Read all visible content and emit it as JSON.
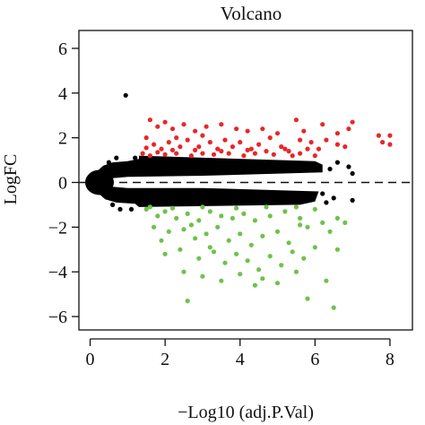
{
  "chart_data": {
    "type": "scatter",
    "title": "Volcano",
    "xlabel": "−Log10 (adj.P.Val)",
    "ylabel": "LogFC",
    "xlim": [
      -0.3,
      8.6
    ],
    "ylim": [
      -6.6,
      6.8
    ],
    "x_ticks": [
      "0",
      "2",
      "4",
      "6",
      "8"
    ],
    "x_tick_values": [
      0,
      2,
      4,
      6,
      8
    ],
    "y_ticks": [
      "6",
      "4",
      "2",
      "0",
      "−2",
      "−4",
      "−6"
    ],
    "y_tick_values": [
      6,
      4,
      2,
      0,
      -2,
      -4,
      -6
    ],
    "reference_line_y": 0,
    "grid": false,
    "legend": "none",
    "series": [
      {
        "color": "#e8272a",
        "points": [
          [
            1.6,
            2.8
          ],
          [
            1.8,
            2.5
          ],
          [
            2.0,
            2.7
          ],
          [
            2.2,
            2.4
          ],
          [
            2.5,
            2.6
          ],
          [
            2.8,
            2.3
          ],
          [
            3.1,
            2.5
          ],
          [
            3.5,
            2.6
          ],
          [
            3.9,
            2.4
          ],
          [
            4.2,
            2.3
          ],
          [
            4.6,
            2.4
          ],
          [
            5.0,
            2.2
          ],
          [
            5.5,
            2.8
          ],
          [
            5.7,
            2.3
          ],
          [
            6.2,
            2.6
          ],
          [
            6.6,
            2.2
          ],
          [
            6.9,
            2.4
          ],
          [
            7.0,
            2.7
          ],
          [
            7.7,
            2.1
          ],
          [
            8.0,
            2.1
          ],
          [
            7.8,
            1.8
          ],
          [
            8.0,
            1.7
          ],
          [
            6.3,
            1.9
          ],
          [
            6.6,
            1.7
          ],
          [
            6.8,
            1.6
          ],
          [
            5.9,
            1.8
          ],
          [
            5.6,
            1.9
          ],
          [
            4.8,
            2.0
          ],
          [
            3.0,
            2.1
          ],
          [
            2.3,
            2.0
          ],
          [
            1.5,
            2.0
          ],
          [
            1.7,
            1.7
          ],
          [
            1.9,
            1.5
          ],
          [
            2.1,
            1.8
          ],
          [
            2.4,
            1.6
          ],
          [
            2.6,
            1.9
          ],
          [
            2.9,
            1.6
          ],
          [
            3.2,
            1.8
          ],
          [
            3.4,
            1.5
          ],
          [
            3.6,
            1.9
          ],
          [
            3.8,
            1.6
          ],
          [
            4.0,
            1.8
          ],
          [
            4.3,
            1.5
          ],
          [
            4.5,
            1.7
          ],
          [
            4.7,
            1.4
          ],
          [
            5.1,
            1.6
          ],
          [
            5.3,
            1.4
          ],
          [
            5.8,
            1.5
          ],
          [
            1.4,
            1.3
          ],
          [
            1.6,
            1.2
          ],
          [
            1.8,
            1.35
          ],
          [
            2.0,
            1.25
          ],
          [
            2.3,
            1.3
          ],
          [
            2.7,
            1.2
          ],
          [
            3.0,
            1.3
          ],
          [
            3.3,
            1.25
          ],
          [
            3.7,
            1.3
          ],
          [
            4.1,
            1.2
          ],
          [
            4.4,
            1.3
          ],
          [
            4.9,
            1.25
          ],
          [
            5.4,
            1.2
          ],
          [
            5.6,
            1.3
          ],
          [
            6.0,
            1.2
          ],
          [
            1.5,
            1.55
          ],
          [
            2.2,
            1.45
          ],
          [
            2.8,
            1.45
          ],
          [
            3.5,
            1.4
          ],
          [
            4.2,
            1.45
          ],
          [
            5.2,
            1.5
          ],
          [
            6.1,
            1.5
          ]
        ]
      },
      {
        "color": "#6ec24a",
        "points": [
          [
            1.5,
            -1.2
          ],
          [
            1.8,
            -1.5
          ],
          [
            2.0,
            -1.3
          ],
          [
            2.3,
            -1.6
          ],
          [
            2.6,
            -1.4
          ],
          [
            2.9,
            -1.7
          ],
          [
            3.2,
            -1.3
          ],
          [
            3.5,
            -1.5
          ],
          [
            3.8,
            -1.6
          ],
          [
            4.1,
            -1.4
          ],
          [
            4.4,
            -1.7
          ],
          [
            4.8,
            -1.5
          ],
          [
            5.2,
            -1.3
          ],
          [
            5.6,
            -1.6
          ],
          [
            1.7,
            -2.0
          ],
          [
            2.1,
            -2.2
          ],
          [
            2.5,
            -2.1
          ],
          [
            2.8,
            -2.5
          ],
          [
            3.1,
            -2.3
          ],
          [
            3.4,
            -2.0
          ],
          [
            3.7,
            -2.6
          ],
          [
            4.0,
            -2.3
          ],
          [
            4.3,
            -2.8
          ],
          [
            4.6,
            -2.4
          ],
          [
            5.0,
            -2.2
          ],
          [
            5.3,
            -2.7
          ],
          [
            5.8,
            -2.0
          ],
          [
            6.2,
            -1.8
          ],
          [
            6.4,
            -2.2
          ],
          [
            6.6,
            -1.6
          ],
          [
            2.0,
            -3.2
          ],
          [
            2.4,
            -3.0
          ],
          [
            2.9,
            -3.4
          ],
          [
            3.3,
            -3.1
          ],
          [
            3.6,
            -3.6
          ],
          [
            3.9,
            -3.2
          ],
          [
            4.2,
            -3.5
          ],
          [
            4.5,
            -3.9
          ],
          [
            4.8,
            -3.3
          ],
          [
            5.1,
            -3.7
          ],
          [
            5.4,
            -3.1
          ],
          [
            5.7,
            -3.4
          ],
          [
            6.0,
            -2.9
          ],
          [
            2.5,
            -4.0
          ],
          [
            3.0,
            -4.2
          ],
          [
            3.5,
            -4.4
          ],
          [
            4.0,
            -4.1
          ],
          [
            4.6,
            -4.3
          ],
          [
            5.0,
            -4.5
          ],
          [
            5.5,
            -4.0
          ],
          [
            6.3,
            -4.4
          ],
          [
            4.4,
            -4.6
          ],
          [
            2.6,
            -5.3
          ],
          [
            5.8,
            -5.2
          ],
          [
            6.5,
            -5.6
          ],
          [
            1.6,
            -1.1
          ],
          [
            2.2,
            -1.15
          ],
          [
            3.0,
            -1.1
          ],
          [
            3.9,
            -1.15
          ],
          [
            4.7,
            -1.1
          ],
          [
            5.5,
            -1.1
          ],
          [
            6.0,
            -1.2
          ],
          [
            1.9,
            -2.6
          ],
          [
            3.2,
            -2.9
          ],
          [
            5.6,
            -1.9
          ],
          [
            6.6,
            -3.0
          ],
          [
            6.8,
            -1.8
          ],
          [
            2.7,
            -1.9
          ]
        ]
      },
      {
        "color": "#000000",
        "points": [
          [
            0.95,
            3.9
          ],
          [
            6.4,
            0.6
          ],
          [
            6.6,
            0.9
          ],
          [
            6.9,
            0.7
          ],
          [
            7.0,
            0.4
          ],
          [
            6.2,
            -0.5
          ],
          [
            6.5,
            -0.7
          ],
          [
            7.0,
            -0.8
          ],
          [
            6.3,
            -0.9
          ],
          [
            0.6,
            -1.0
          ],
          [
            0.8,
            -1.2
          ],
          [
            0.5,
            0.9
          ],
          [
            0.7,
            1.1
          ],
          [
            1.1,
            -1.2
          ],
          [
            1.2,
            1.1
          ]
        ]
      }
    ]
  }
}
